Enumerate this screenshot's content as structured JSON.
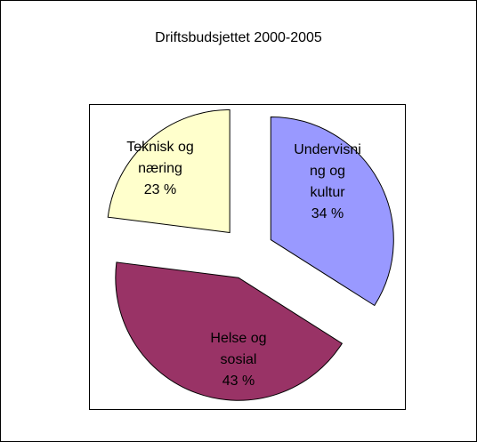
{
  "chart_data": {
    "type": "pie",
    "title": "Driftsbudsjettet 2000-2005",
    "categories": [
      "Undervisning og kultur",
      "Helse og sosial",
      "Teknisk og næring"
    ],
    "values": [
      34,
      43,
      23
    ],
    "value_labels": [
      "34 %",
      "43 %",
      "23 %"
    ],
    "colors": [
      "#9999ff",
      "#993366",
      "#ffffcc"
    ]
  }
}
